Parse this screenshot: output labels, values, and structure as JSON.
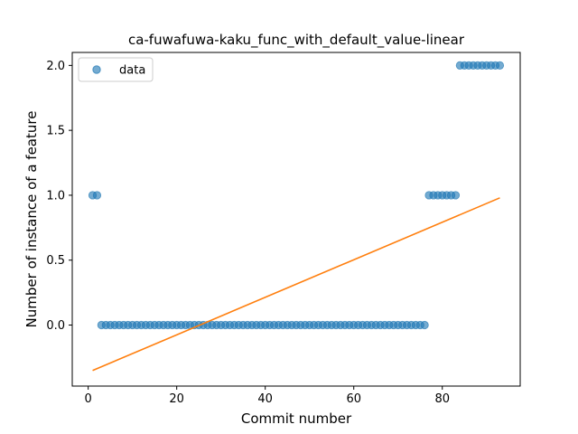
{
  "chart_data": {
    "type": "scatter",
    "title": "ca-fuwafuwa-kaku_func_with_default_value-linear",
    "xlabel": "Commit number",
    "ylabel": "Number of instance of a feature",
    "xlim": [
      -3.6,
      97.6
    ],
    "ylim": [
      -0.47,
      2.1
    ],
    "xticks": [
      0,
      20,
      40,
      60,
      80
    ],
    "xtick_labels": [
      "0",
      "20",
      "40",
      "60",
      "80"
    ],
    "yticks": [
      0.0,
      0.5,
      1.0,
      1.5,
      2.0
    ],
    "ytick_labels": [
      "0.0",
      "0.5",
      "1.0",
      "1.5",
      "2.0"
    ],
    "legend": {
      "position": "top-left",
      "entries": [
        "data"
      ]
    },
    "grid": false,
    "series": [
      {
        "name": "data",
        "kind": "scatter",
        "color": "#1f77b4",
        "x": [
          1,
          2,
          3,
          4,
          5,
          6,
          7,
          8,
          9,
          10,
          11,
          12,
          13,
          14,
          15,
          16,
          17,
          18,
          19,
          20,
          21,
          22,
          23,
          24,
          25,
          26,
          27,
          28,
          29,
          30,
          31,
          32,
          33,
          34,
          35,
          36,
          37,
          38,
          39,
          40,
          41,
          42,
          43,
          44,
          45,
          46,
          47,
          48,
          49,
          50,
          51,
          52,
          53,
          54,
          55,
          56,
          57,
          58,
          59,
          60,
          61,
          62,
          63,
          64,
          65,
          66,
          67,
          68,
          69,
          70,
          71,
          72,
          73,
          74,
          75,
          76,
          77,
          78,
          79,
          80,
          81,
          82,
          83,
          84,
          85,
          86,
          87,
          88,
          89,
          90,
          91,
          92,
          93
        ],
        "y": [
          1,
          1,
          0,
          0,
          0,
          0,
          0,
          0,
          0,
          0,
          0,
          0,
          0,
          0,
          0,
          0,
          0,
          0,
          0,
          0,
          0,
          0,
          0,
          0,
          0,
          0,
          0,
          0,
          0,
          0,
          0,
          0,
          0,
          0,
          0,
          0,
          0,
          0,
          0,
          0,
          0,
          0,
          0,
          0,
          0,
          0,
          0,
          0,
          0,
          0,
          0,
          0,
          0,
          0,
          0,
          0,
          0,
          0,
          0,
          0,
          0,
          0,
          0,
          0,
          0,
          0,
          0,
          0,
          0,
          0,
          0,
          0,
          0,
          0,
          0,
          0,
          1,
          1,
          1,
          1,
          1,
          1,
          1,
          2,
          2,
          2,
          2,
          2,
          2,
          2,
          2,
          2,
          2
        ]
      },
      {
        "kind": "line",
        "color": "#ff7f0e",
        "x": [
          1,
          93
        ],
        "y": [
          -0.35,
          0.98
        ]
      }
    ]
  }
}
